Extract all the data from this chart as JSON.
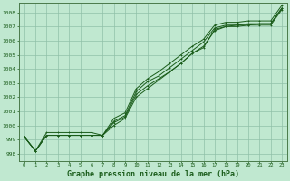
{
  "xlabel": "Graphe pression niveau de la mer (hPa)",
  "background_color": "#c0e8d0",
  "grid_color": "#90c0a8",
  "line_color": "#1a5c1a",
  "xlim": [
    -0.5,
    23.5
  ],
  "ylim": [
    997.5,
    1008.7
  ],
  "yticks": [
    998,
    999,
    1000,
    1001,
    1002,
    1003,
    1004,
    1005,
    1006,
    1007,
    1008
  ],
  "xticks": [
    0,
    1,
    2,
    3,
    4,
    5,
    6,
    7,
    8,
    9,
    10,
    11,
    12,
    13,
    14,
    15,
    16,
    17,
    18,
    19,
    20,
    21,
    22,
    23
  ],
  "hours": [
    0,
    1,
    2,
    3,
    4,
    5,
    6,
    7,
    8,
    9,
    10,
    11,
    12,
    13,
    14,
    15,
    16,
    17,
    18,
    19,
    20,
    21,
    22,
    23
  ],
  "series": [
    [
      999.2,
      998.2,
      999.3,
      999.3,
      999.3,
      999.3,
      999.3,
      999.3,
      1000.2,
      1000.6,
      1002.2,
      1002.8,
      1003.3,
      1003.8,
      1004.4,
      1005.1,
      1005.5,
      1006.8,
      1007.0,
      1007.1,
      1007.1,
      1007.2,
      1007.2,
      1008.3
    ],
    [
      999.2,
      998.2,
      999.3,
      999.3,
      999.3,
      999.3,
      999.3,
      999.3,
      1000.3,
      1000.7,
      1002.4,
      1003.1,
      1003.5,
      1004.1,
      1004.7,
      1005.3,
      1005.9,
      1006.9,
      1007.1,
      1007.1,
      1007.2,
      1007.2,
      1007.2,
      1008.3
    ],
    [
      999.2,
      998.2,
      999.5,
      999.5,
      999.5,
      999.5,
      999.5,
      999.3,
      1000.0,
      1000.5,
      1002.0,
      1002.6,
      1003.2,
      1003.8,
      1004.4,
      1005.1,
      1005.6,
      1006.7,
      1007.0,
      1007.0,
      1007.1,
      1007.1,
      1007.1,
      1008.2
    ],
    [
      999.2,
      998.2,
      999.3,
      999.3,
      999.3,
      999.3,
      999.3,
      999.3,
      1000.5,
      1000.9,
      1002.6,
      1003.3,
      1003.8,
      1004.4,
      1005.0,
      1005.6,
      1006.1,
      1007.1,
      1007.3,
      1007.3,
      1007.4,
      1007.4,
      1007.4,
      1008.5
    ]
  ]
}
